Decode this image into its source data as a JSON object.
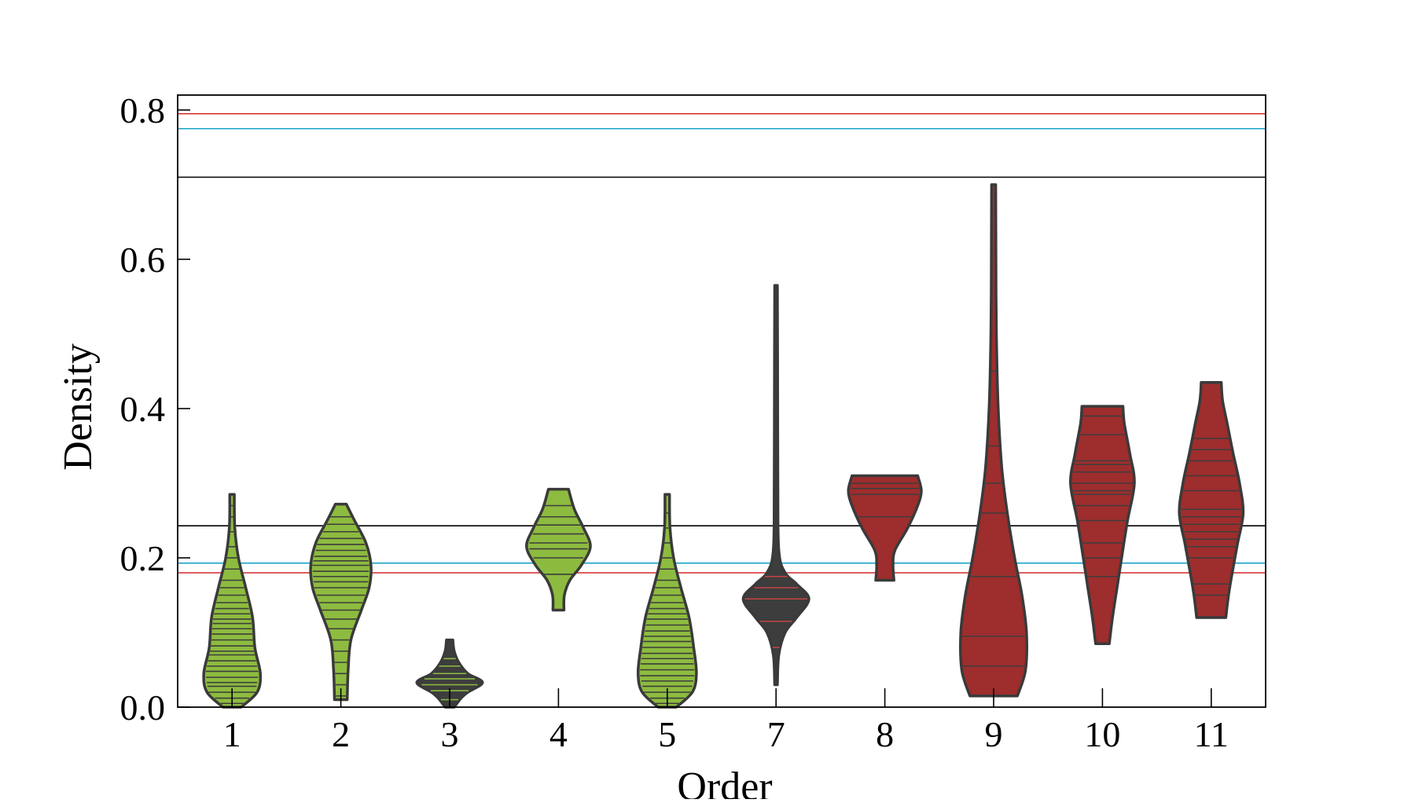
{
  "chart_data": {
    "type": "violin",
    "xlabel": "Order",
    "ylabel": "Density",
    "ylim": [
      0.0,
      0.82
    ],
    "y_ticks": [
      "0.0",
      "0.2",
      "0.4",
      "0.6",
      "0.8"
    ],
    "y_tick_values": [
      0.0,
      0.2,
      0.4,
      0.6,
      0.8
    ],
    "categories": [
      "1",
      "2",
      "3",
      "4",
      "5",
      "7",
      "8",
      "9",
      "10",
      "11"
    ],
    "reference_lines": [
      {
        "y": 0.795,
        "color": "#d62728"
      },
      {
        "y": 0.775,
        "color": "#17a3c4"
      },
      {
        "y": 0.71,
        "color": "#000000"
      },
      {
        "y": 0.243,
        "color": "#000000"
      },
      {
        "y": 0.193,
        "color": "#17a3c4"
      },
      {
        "y": 0.18,
        "color": "#d62728"
      }
    ],
    "violins": [
      {
        "category": "1",
        "min": 0.0,
        "max": 0.285,
        "fill": "#8dbb3f",
        "stripe": "#3d3d3d",
        "profile": [
          [
            0.0,
            0.2
          ],
          [
            0.02,
            0.55
          ],
          [
            0.045,
            0.62
          ],
          [
            0.08,
            0.5
          ],
          [
            0.12,
            0.45
          ],
          [
            0.16,
            0.3
          ],
          [
            0.2,
            0.14
          ],
          [
            0.24,
            0.06
          ],
          [
            0.285,
            0.05
          ]
        ],
        "stripes": [
          0.005,
          0.012,
          0.02,
          0.028,
          0.033,
          0.04,
          0.048,
          0.055,
          0.062,
          0.07,
          0.075,
          0.082,
          0.09,
          0.098,
          0.105,
          0.112,
          0.118,
          0.125,
          0.132,
          0.14,
          0.15,
          0.16,
          0.17,
          0.185,
          0.2,
          0.215,
          0.235,
          0.255,
          0.27
        ]
      },
      {
        "category": "2",
        "min": 0.01,
        "max": 0.272,
        "fill": "#8dbb3f",
        "stripe": "#3d3d3d",
        "profile": [
          [
            0.01,
            0.14
          ],
          [
            0.05,
            0.16
          ],
          [
            0.09,
            0.22
          ],
          [
            0.13,
            0.45
          ],
          [
            0.16,
            0.62
          ],
          [
            0.19,
            0.66
          ],
          [
            0.22,
            0.55
          ],
          [
            0.25,
            0.3
          ],
          [
            0.272,
            0.12
          ]
        ],
        "stripes": [
          0.015,
          0.03,
          0.045,
          0.06,
          0.075,
          0.09,
          0.105,
          0.118,
          0.13,
          0.14,
          0.15,
          0.16,
          0.168,
          0.175,
          0.182,
          0.19,
          0.196,
          0.202,
          0.21,
          0.218,
          0.226,
          0.235,
          0.245,
          0.255
        ]
      },
      {
        "category": "3",
        "min": 0.0,
        "max": 0.09,
        "fill": "#3d3d3d",
        "stripe": "#8dbb3f",
        "profile": [
          [
            0.0,
            0.1
          ],
          [
            0.012,
            0.25
          ],
          [
            0.02,
            0.4
          ],
          [
            0.033,
            0.72
          ],
          [
            0.045,
            0.4
          ],
          [
            0.06,
            0.2
          ],
          [
            0.075,
            0.1
          ],
          [
            0.09,
            0.07
          ]
        ],
        "stripes": [
          0.01,
          0.022,
          0.03,
          0.038,
          0.045,
          0.055,
          0.065
        ]
      },
      {
        "category": "4",
        "min": 0.13,
        "max": 0.292,
        "fill": "#8dbb3f",
        "stripe": "#3d3d3d",
        "profile": [
          [
            0.13,
            0.12
          ],
          [
            0.15,
            0.13
          ],
          [
            0.17,
            0.25
          ],
          [
            0.19,
            0.5
          ],
          [
            0.215,
            0.7
          ],
          [
            0.24,
            0.55
          ],
          [
            0.265,
            0.35
          ],
          [
            0.292,
            0.22
          ]
        ],
        "stripes": [
          0.178,
          0.2,
          0.212,
          0.22,
          0.232,
          0.244,
          0.255,
          0.27
        ]
      },
      {
        "category": "5",
        "min": 0.0,
        "max": 0.285,
        "fill": "#8dbb3f",
        "stripe": "#3d3d3d",
        "profile": [
          [
            0.0,
            0.2
          ],
          [
            0.02,
            0.55
          ],
          [
            0.045,
            0.64
          ],
          [
            0.08,
            0.58
          ],
          [
            0.12,
            0.48
          ],
          [
            0.16,
            0.3
          ],
          [
            0.2,
            0.14
          ],
          [
            0.24,
            0.06
          ],
          [
            0.285,
            0.05
          ]
        ],
        "stripes": [
          0.005,
          0.012,
          0.02,
          0.028,
          0.035,
          0.042,
          0.05,
          0.058,
          0.065,
          0.072,
          0.08,
          0.088,
          0.095,
          0.102,
          0.11,
          0.118,
          0.125,
          0.132,
          0.14,
          0.15,
          0.16,
          0.17,
          0.185,
          0.2,
          0.22,
          0.24,
          0.26
        ]
      },
      {
        "category": "7",
        "min": 0.03,
        "max": 0.565,
        "fill": "#3d3d3d",
        "stripe": "#c44444",
        "profile": [
          [
            0.03,
            0.03
          ],
          [
            0.07,
            0.06
          ],
          [
            0.1,
            0.2
          ],
          [
            0.12,
            0.45
          ],
          [
            0.145,
            0.72
          ],
          [
            0.165,
            0.45
          ],
          [
            0.18,
            0.2
          ],
          [
            0.21,
            0.06
          ],
          [
            0.3,
            0.04
          ],
          [
            0.45,
            0.035
          ],
          [
            0.565,
            0.03
          ]
        ],
        "stripes": [
          0.08,
          0.115,
          0.145,
          0.16,
          0.175
        ]
      },
      {
        "category": "8",
        "min": 0.17,
        "max": 0.31,
        "fill": "#9e2d2d",
        "stripe": "#3d3d3d",
        "profile": [
          [
            0.17,
            0.2
          ],
          [
            0.19,
            0.18
          ],
          [
            0.21,
            0.22
          ],
          [
            0.24,
            0.5
          ],
          [
            0.27,
            0.72
          ],
          [
            0.29,
            0.8
          ],
          [
            0.31,
            0.72
          ]
        ],
        "stripes": [
          0.255,
          0.285,
          0.293,
          0.3
        ]
      },
      {
        "category": "9",
        "min": 0.015,
        "max": 0.7,
        "fill": "#9e2d2d",
        "stripe": "#3d3d3d",
        "profile": [
          [
            0.015,
            0.52
          ],
          [
            0.05,
            0.7
          ],
          [
            0.1,
            0.72
          ],
          [
            0.15,
            0.62
          ],
          [
            0.2,
            0.46
          ],
          [
            0.26,
            0.3
          ],
          [
            0.32,
            0.18
          ],
          [
            0.4,
            0.1
          ],
          [
            0.5,
            0.06
          ],
          [
            0.6,
            0.05
          ],
          [
            0.7,
            0.045
          ]
        ],
        "stripes": [
          0.055,
          0.095,
          0.175,
          0.26,
          0.3,
          0.35,
          0.45
        ]
      },
      {
        "category": "10",
        "min": 0.085,
        "max": 0.403,
        "fill": "#9e2d2d",
        "stripe": "#3d3d3d",
        "profile": [
          [
            0.085,
            0.15
          ],
          [
            0.12,
            0.22
          ],
          [
            0.16,
            0.32
          ],
          [
            0.2,
            0.42
          ],
          [
            0.25,
            0.55
          ],
          [
            0.3,
            0.7
          ],
          [
            0.34,
            0.6
          ],
          [
            0.38,
            0.48
          ],
          [
            0.403,
            0.45
          ]
        ],
        "stripes": [
          0.175,
          0.2,
          0.22,
          0.25,
          0.27,
          0.285,
          0.29,
          0.3,
          0.315,
          0.325,
          0.33,
          0.365,
          0.39
        ]
      },
      {
        "category": "11",
        "min": 0.12,
        "max": 0.435,
        "fill": "#9e2d2d",
        "stripe": "#3d3d3d",
        "profile": [
          [
            0.12,
            0.32
          ],
          [
            0.15,
            0.38
          ],
          [
            0.18,
            0.46
          ],
          [
            0.22,
            0.58
          ],
          [
            0.26,
            0.7
          ],
          [
            0.3,
            0.62
          ],
          [
            0.34,
            0.48
          ],
          [
            0.38,
            0.35
          ],
          [
            0.41,
            0.25
          ],
          [
            0.435,
            0.22
          ]
        ],
        "stripes": [
          0.15,
          0.165,
          0.2,
          0.215,
          0.225,
          0.235,
          0.245,
          0.255,
          0.265,
          0.29,
          0.31,
          0.33,
          0.345,
          0.36
        ]
      }
    ]
  }
}
